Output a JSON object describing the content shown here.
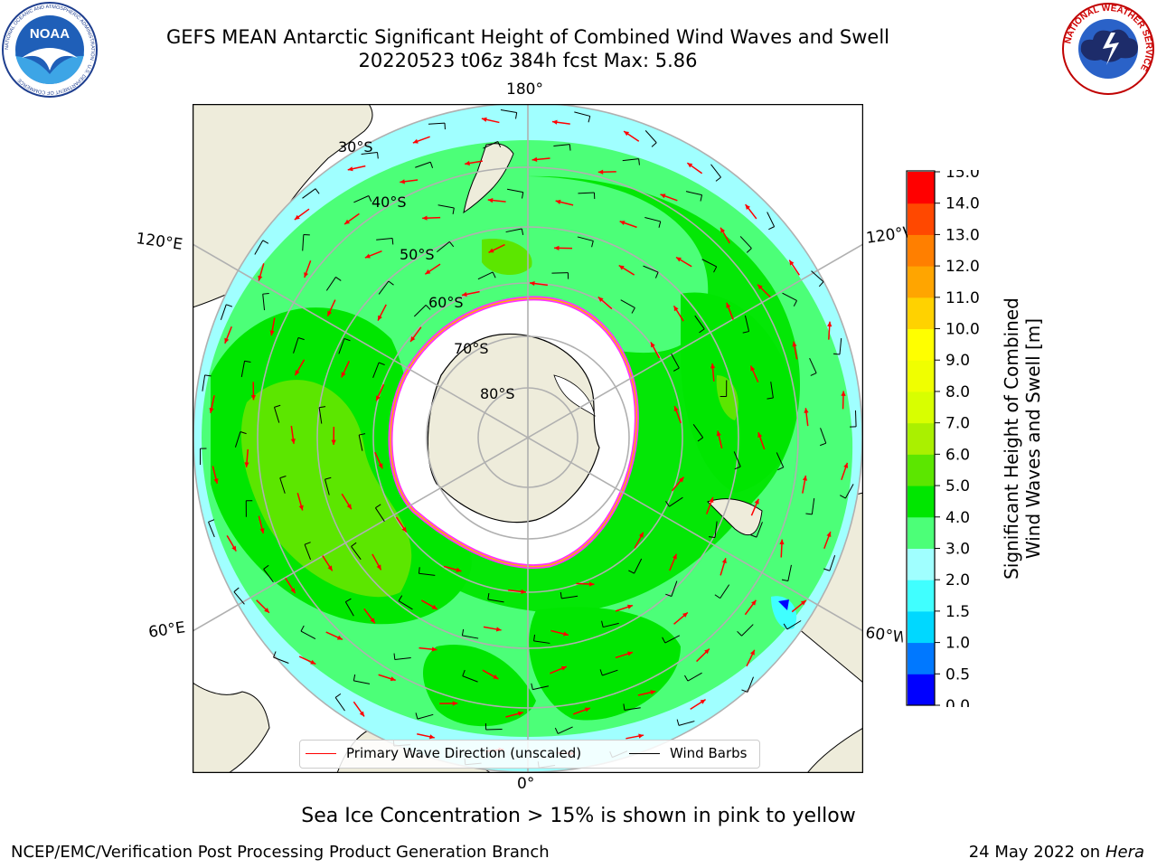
{
  "header": {
    "title_line1": "GEFS MEAN Antarctic Significant Height of Combined Wind Waves and Swell",
    "title_line2": "20220523 t06z 384h fcst   Max: 5.86",
    "left_logo_text": "NOAA",
    "left_logo_ring_text": "NATIONAL OCEANIC AND ATMOSPHERIC ADMINISTRATION · U.S. DEPARTMENT OF COMMERCE",
    "right_logo_ring_text": "NATIONAL WEATHER SERVICE"
  },
  "map": {
    "projection": "south-polar-stereographic",
    "longitude_labels": {
      "top": "180°",
      "bottom": "0°",
      "upper_left": "120°E",
      "upper_right": "120°W",
      "lower_left": "60°E",
      "lower_right": "60°W"
    },
    "latitude_labels": [
      "30°S",
      "40°S",
      "50°S",
      "60°S",
      "70°S",
      "80°S"
    ],
    "land_color": "#eeecdb",
    "ice_mask_color": "#ffffff",
    "ice_edge_colors": [
      "#ff33ff",
      "#ffb000",
      "#ffff00"
    ],
    "coast_color": "#000000",
    "grid_color": "#b0b0b0",
    "wave_arrow_color": "#ff0000",
    "barb_color": "#000000"
  },
  "legend": {
    "wave_direction_label": "Primary Wave Direction (unscaled)",
    "wind_barbs_label": "Wind Barbs",
    "wave_direction_color": "#ff0000",
    "wind_barbs_color": "#000000"
  },
  "colorbar": {
    "title_line1": "Significant Height of Combined",
    "title_line2": "Wind Waves and Swell [m]",
    "ticks": [
      "0.0",
      "0.5",
      "1.0",
      "1.5",
      "2.0",
      "3.0",
      "4.0",
      "5.0",
      "6.0",
      "7.0",
      "8.0",
      "9.0",
      "10.0",
      "11.0",
      "12.0",
      "13.0",
      "14.0",
      "15.0"
    ],
    "colors": [
      "#0000ff",
      "#0078ff",
      "#00d8ff",
      "#40ffff",
      "#a0ffff",
      "#4cff78",
      "#00e600",
      "#5ce600",
      "#aaf000",
      "#d8ff00",
      "#f0ff00",
      "#ffff00",
      "#ffd200",
      "#ffa500",
      "#ff7f00",
      "#ff4800",
      "#ff0000"
    ]
  },
  "footer": {
    "note": "Sea Ice Concentration > 15% is shown in pink to yellow",
    "credit": "NCEP/EMC/Verification Post Processing Product Generation Branch",
    "date": "24 May 2022 on",
    "machine": "Hera"
  }
}
